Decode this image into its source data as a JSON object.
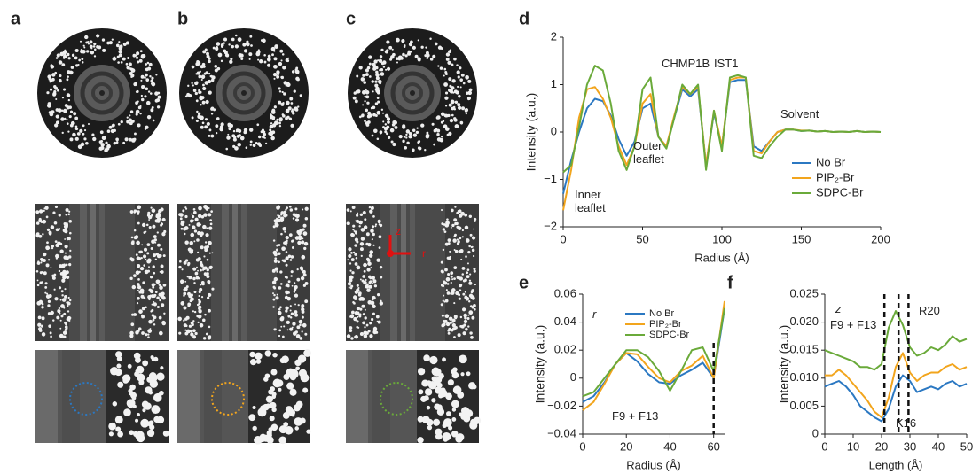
{
  "panel_labels": [
    "a",
    "b",
    "c"
  ],
  "image_annotations": [
    "z",
    "r"
  ],
  "chart_data": [
    {
      "type": "line",
      "panel_label": "d",
      "xlabel": "Radius (Å)",
      "ylabel": "Intensity (a.u.)",
      "x": [
        0,
        5,
        10,
        15,
        20,
        25,
        30,
        35,
        40,
        45,
        50,
        55,
        60,
        65,
        70,
        75,
        80,
        85,
        90,
        95,
        100,
        105,
        110,
        115,
        120,
        125,
        130,
        135,
        140,
        145,
        150,
        155,
        160,
        165,
        170,
        175,
        180,
        185,
        190,
        195,
        200
      ],
      "xlim": [
        0,
        200
      ],
      "xticks": [
        0,
        50,
        100,
        150,
        200
      ],
      "ylim": [
        -2,
        2
      ],
      "yticks": [
        {
          "value": -2,
          "label": "−2"
        },
        {
          "value": -1,
          "label": "−1"
        },
        0,
        1,
        2
      ],
      "legend": "lower right",
      "annotations": [
        "Inner leaflet",
        "Outer leaflet",
        "CHMP1B",
        "IST1",
        "Solvent"
      ],
      "vlines": [],
      "series": [
        {
          "name": "No Br",
          "color": "#2b78c2",
          "values": [
            -1.3,
            -0.6,
            0.0,
            0.5,
            0.7,
            0.65,
            0.35,
            -0.15,
            -0.5,
            -0.2,
            0.5,
            0.6,
            -0.1,
            -0.3,
            0.3,
            0.9,
            0.75,
            0.9,
            -0.7,
            0.4,
            -0.3,
            1.05,
            1.1,
            1.1,
            -0.3,
            -0.4,
            -0.2,
            0.0,
            0.05,
            0.05,
            0.02,
            0.03,
            0.01,
            0.02,
            0.0,
            0.01,
            0.0,
            0.02,
            0.0,
            0.01,
            0.0
          ]
        },
        {
          "name": "PIP₂-Br",
          "color": "#f2a51d",
          "values": [
            -1.65,
            -0.8,
            0.3,
            0.9,
            0.95,
            0.7,
            0.3,
            -0.3,
            -0.7,
            -0.3,
            0.6,
            0.8,
            -0.1,
            -0.3,
            0.35,
            0.95,
            0.8,
            0.95,
            -0.7,
            0.45,
            -0.3,
            1.1,
            1.15,
            1.15,
            -0.4,
            -0.45,
            -0.2,
            0.0,
            0.05,
            0.05,
            0.03,
            0.03,
            0.01,
            0.02,
            0.0,
            0.01,
            0.0,
            0.02,
            0.0,
            0.01,
            0.0
          ]
        },
        {
          "name": "SDPC-Br",
          "color": "#6aaa3a",
          "values": [
            -0.85,
            -0.7,
            0.1,
            1.0,
            1.4,
            1.3,
            0.6,
            -0.4,
            -0.8,
            -0.3,
            0.9,
            1.15,
            -0.1,
            -0.35,
            0.3,
            1.0,
            0.8,
            1.0,
            -0.8,
            0.45,
            -0.4,
            1.15,
            1.2,
            1.15,
            -0.5,
            -0.55,
            -0.3,
            -0.1,
            0.05,
            0.05,
            0.02,
            0.03,
            0.01,
            0.02,
            0.0,
            0.01,
            0.0,
            0.02,
            0.0,
            0.01,
            0.0
          ]
        }
      ]
    },
    {
      "type": "line",
      "panel_label": "e",
      "xlabel": "Radius (Å)",
      "ylabel": "Intensity (a.u.)",
      "x": [
        0,
        5,
        10,
        15,
        20,
        25,
        30,
        35,
        40,
        45,
        50,
        55,
        60,
        65
      ],
      "xlim": [
        0,
        65
      ],
      "xticks": [
        0,
        20,
        40,
        60
      ],
      "ylim": [
        -0.04,
        0.06
      ],
      "yticks": [
        {
          "value": -0.04,
          "label": "−0.04"
        },
        {
          "value": -0.02,
          "label": "−0.02"
        },
        0,
        0.02,
        0.04,
        0.06
      ],
      "legend": "top",
      "annotations": [
        "r"
      ],
      "vlines": [
        {
          "x": 60,
          "label": "F9 + F13"
        }
      ],
      "series": [
        {
          "name": "No Br",
          "color": "#2b78c2",
          "values": [
            -0.017,
            -0.013,
            -0.003,
            0.01,
            0.018,
            0.012,
            0.003,
            -0.003,
            -0.004,
            0.002,
            0.006,
            0.011,
            0.0,
            0.05
          ]
        },
        {
          "name": "PIP₂-Br",
          "color": "#f2a51d",
          "values": [
            -0.023,
            -0.017,
            -0.004,
            0.01,
            0.018,
            0.017,
            0.008,
            0.0,
            -0.003,
            0.005,
            0.009,
            0.016,
            0.0,
            0.055
          ]
        },
        {
          "name": "SDPC-Br",
          "color": "#6aaa3a",
          "values": [
            -0.013,
            -0.01,
            0.0,
            0.01,
            0.02,
            0.02,
            0.015,
            0.005,
            -0.009,
            0.005,
            0.02,
            0.022,
            0.005,
            0.05
          ]
        }
      ]
    },
    {
      "type": "line",
      "panel_label": "f",
      "xlabel": "Length (Å)",
      "ylabel": "Intensity (a.u.)",
      "x": [
        0,
        2.5,
        5,
        7.5,
        10,
        12.5,
        15,
        17.5,
        20,
        22.5,
        25,
        27.5,
        30,
        32.5,
        35,
        37.5,
        40,
        42.5,
        45,
        47.5,
        50
      ],
      "xlim": [
        0,
        50
      ],
      "xticks": [
        0,
        10,
        20,
        30,
        40,
        50
      ],
      "ylim": [
        0,
        0.025
      ],
      "yticks": [
        0,
        0.005,
        {
          "value": 0.01,
          "label": "0.010"
        },
        0.015,
        {
          "value": 0.02,
          "label": "0.020"
        },
        0.025
      ],
      "annotations": [
        "z"
      ],
      "vlines": [
        {
          "x": 21,
          "label": "F9 + F13"
        },
        {
          "x": 26,
          "label": "K16"
        },
        {
          "x": 29.5,
          "label": "R20"
        }
      ],
      "series": [
        {
          "color": "#2b78c2",
          "values": [
            0.0085,
            0.009,
            0.0095,
            0.0085,
            0.007,
            0.005,
            0.004,
            0.003,
            0.0023,
            0.0045,
            0.0085,
            0.0105,
            0.0095,
            0.0075,
            0.008,
            0.0085,
            0.008,
            0.009,
            0.0095,
            0.0085,
            0.009
          ]
        },
        {
          "color": "#f2a51d",
          "values": [
            0.0105,
            0.0105,
            0.0115,
            0.0105,
            0.009,
            0.0075,
            0.006,
            0.004,
            0.003,
            0.0065,
            0.012,
            0.0145,
            0.011,
            0.0095,
            0.0105,
            0.011,
            0.011,
            0.012,
            0.0125,
            0.0115,
            0.012
          ]
        },
        {
          "color": "#6aaa3a",
          "values": [
            0.015,
            0.0145,
            0.014,
            0.0135,
            0.013,
            0.012,
            0.012,
            0.0115,
            0.0125,
            0.019,
            0.022,
            0.0195,
            0.0155,
            0.014,
            0.0145,
            0.0155,
            0.015,
            0.016,
            0.0175,
            0.0165,
            0.017
          ]
        }
      ]
    }
  ]
}
